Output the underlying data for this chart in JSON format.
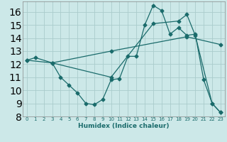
{
  "xlabel": "Humidex (Indice chaleur)",
  "bg_color": "#cce8e8",
  "grid_color": "#aacccc",
  "line_color": "#1a6b6b",
  "xlim": [
    -0.5,
    23.5
  ],
  "ylim": [
    8,
    16.8
  ],
  "yticks": [
    8,
    9,
    10,
    11,
    12,
    13,
    14,
    15,
    16
  ],
  "xticks": [
    0,
    1,
    2,
    3,
    4,
    5,
    6,
    7,
    8,
    9,
    10,
    11,
    12,
    13,
    14,
    15,
    16,
    17,
    18,
    19,
    20,
    21,
    22,
    23
  ],
  "line1_x": [
    0,
    1,
    3,
    4,
    5,
    6,
    7,
    8,
    9,
    10,
    11,
    12,
    13,
    14,
    15,
    16,
    17,
    18,
    19,
    20,
    21,
    22,
    23
  ],
  "line1_y": [
    12.3,
    12.5,
    12.1,
    11.0,
    10.4,
    9.8,
    9.0,
    8.9,
    9.3,
    10.8,
    10.9,
    12.6,
    12.6,
    15.0,
    16.5,
    16.1,
    14.3,
    14.8,
    14.2,
    14.3,
    10.8,
    9.0,
    8.3
  ],
  "line2_x": [
    0,
    3,
    10,
    19,
    23
  ],
  "line2_y": [
    12.3,
    12.1,
    13.0,
    14.1,
    13.5
  ],
  "line3_x": [
    3,
    10,
    15,
    18,
    19,
    20,
    22,
    23
  ],
  "line3_y": [
    12.1,
    11.0,
    15.1,
    15.3,
    15.8,
    14.2,
    9.0,
    8.3
  ]
}
